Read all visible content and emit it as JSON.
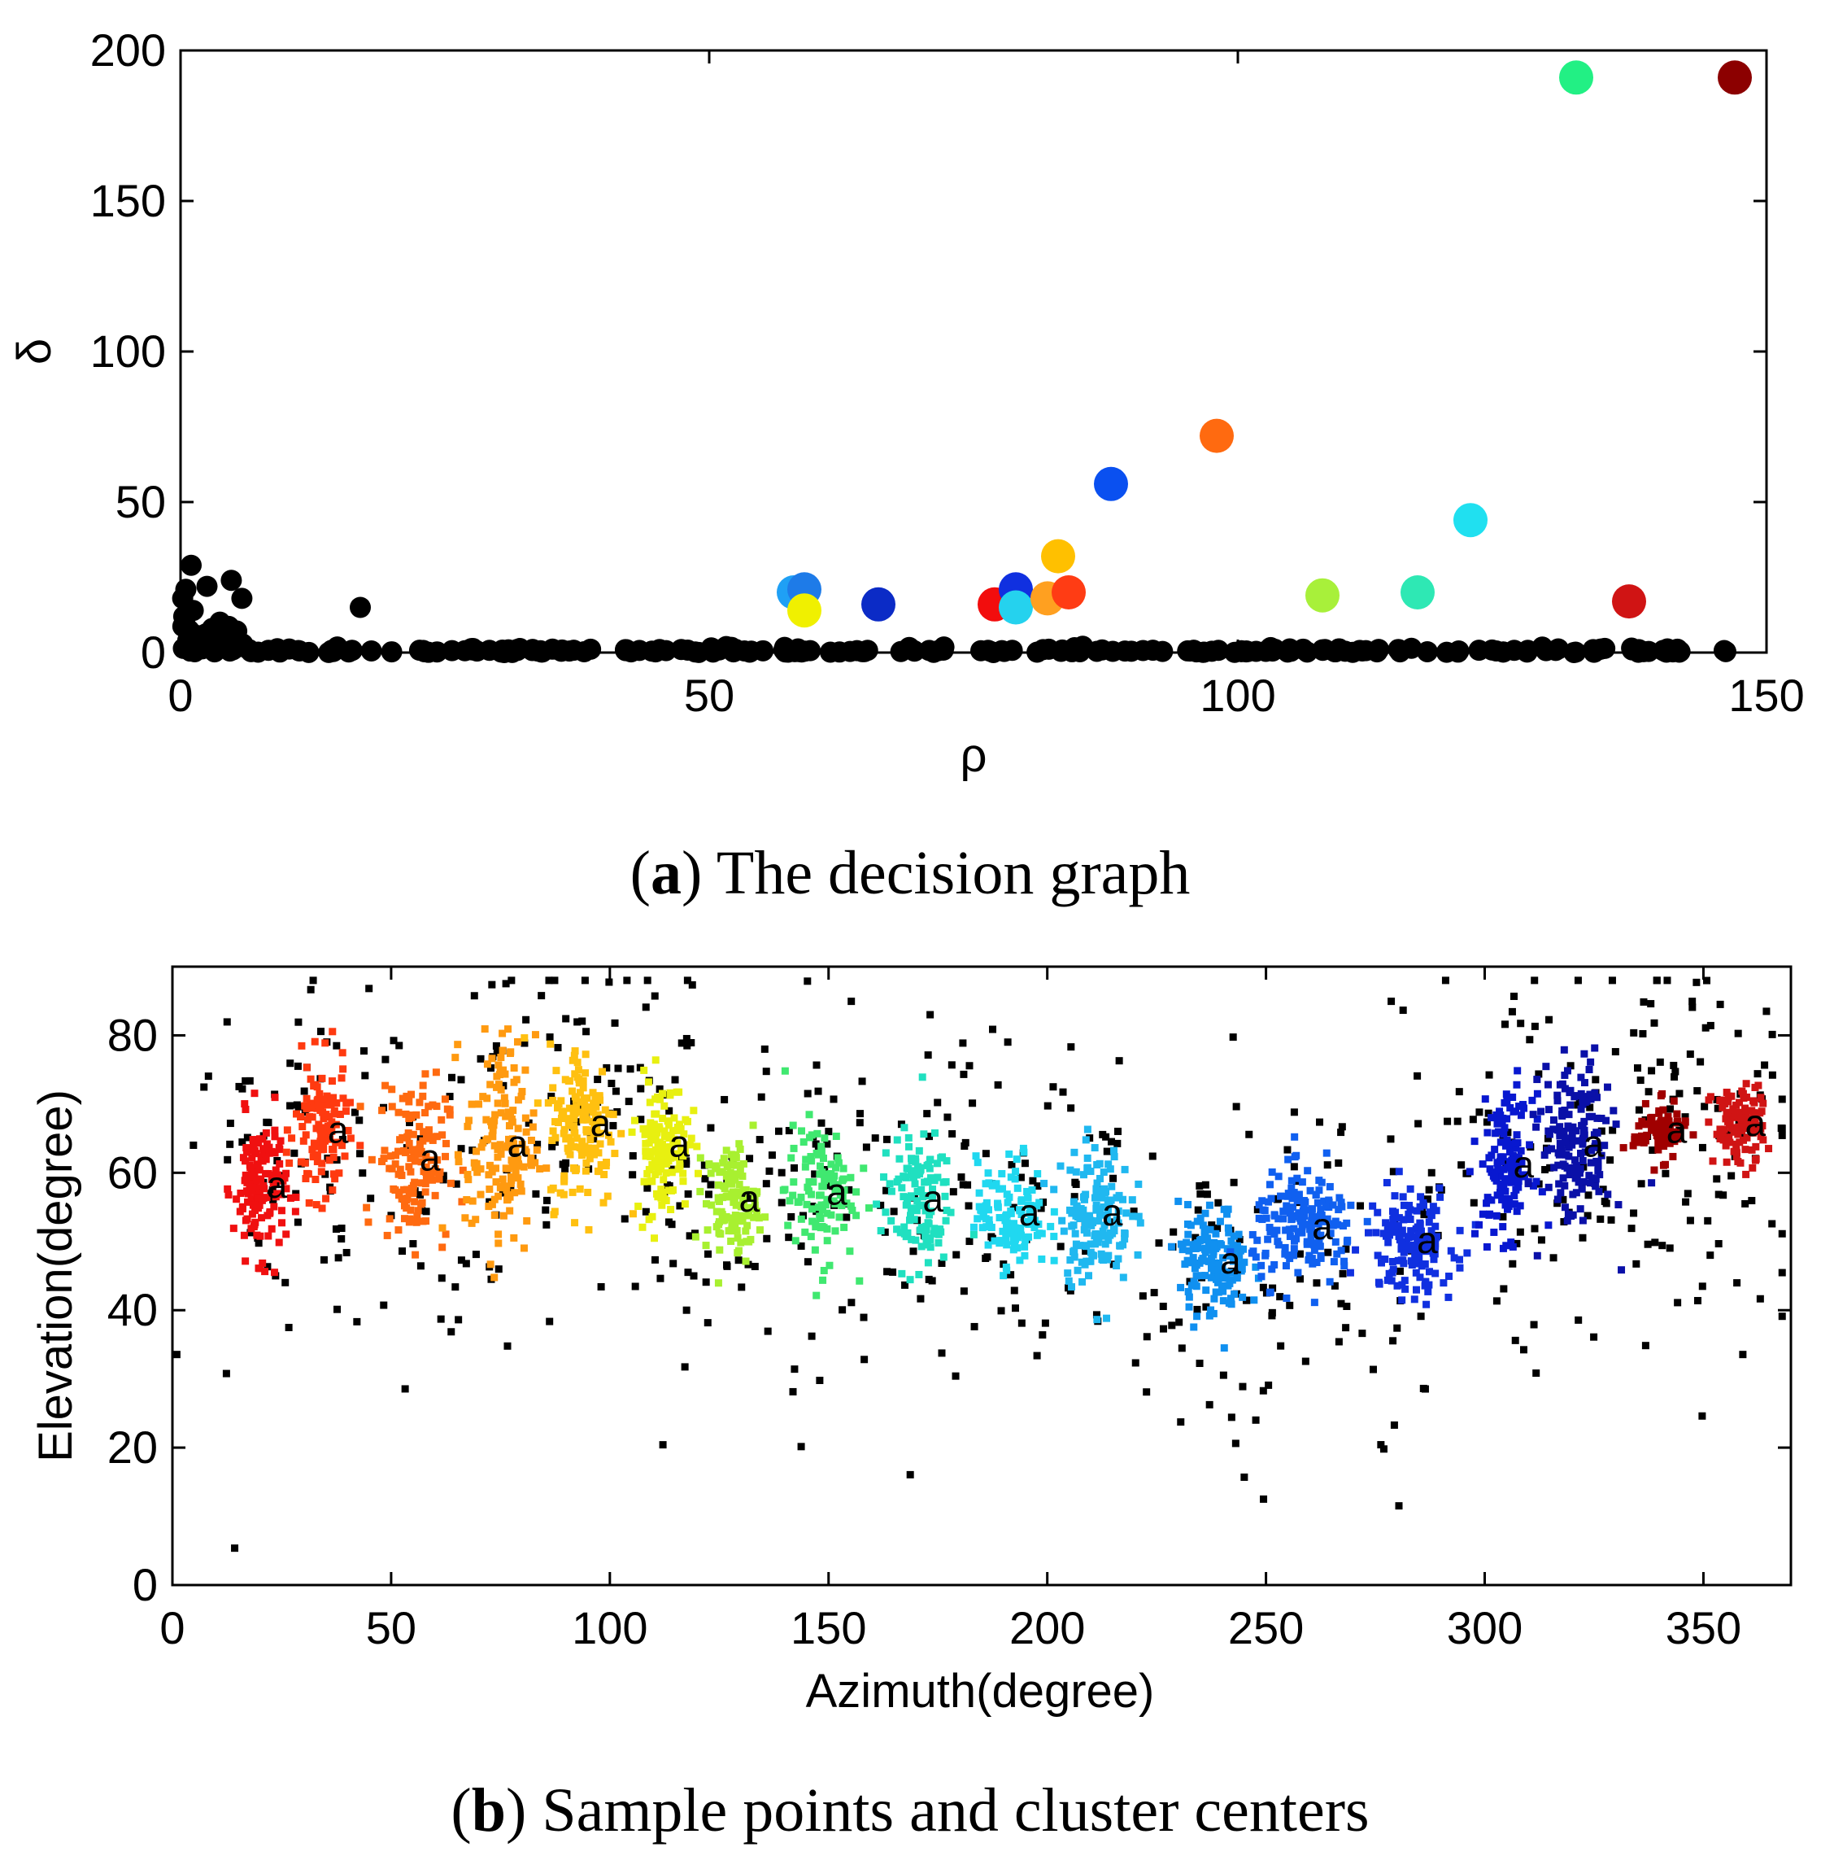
{
  "chart_data": [
    {
      "type": "scatter",
      "title": "",
      "xlabel": "ρ",
      "ylabel": "δ",
      "xlim": [
        0,
        150
      ],
      "ylim": [
        0,
        200
      ],
      "xticks": [
        0,
        50,
        100,
        150
      ],
      "yticks": [
        0,
        50,
        100,
        150,
        200
      ],
      "caption": {
        "label": "a",
        "text": "The decision graph"
      },
      "centers": [
        {
          "x": 58,
          "y": 20,
          "color": "#1fa0f5"
        },
        {
          "x": 59,
          "y": 21,
          "color": "#1e7be8"
        },
        {
          "x": 59,
          "y": 14,
          "color": "#f0f000"
        },
        {
          "x": 66,
          "y": 16,
          "color": "#0b2bc6"
        },
        {
          "x": 77,
          "y": 16,
          "color": "#f20d0d"
        },
        {
          "x": 79,
          "y": 21,
          "color": "#1030e0"
        },
        {
          "x": 79,
          "y": 15,
          "color": "#25d2ee"
        },
        {
          "x": 82,
          "y": 18,
          "color": "#ffa020"
        },
        {
          "x": 83,
          "y": 32,
          "color": "#ffc000"
        },
        {
          "x": 84,
          "y": 20,
          "color": "#ff3c14"
        },
        {
          "x": 88,
          "y": 56,
          "color": "#0a50f0"
        },
        {
          "x": 98,
          "y": 72,
          "color": "#ff6a10"
        },
        {
          "x": 108,
          "y": 19,
          "color": "#a8f03a"
        },
        {
          "x": 117,
          "y": 20,
          "color": "#2ee8b4"
        },
        {
          "x": 122,
          "y": 44,
          "color": "#20e0f0"
        },
        {
          "x": 137,
          "y": 17,
          "color": "#d01414"
        },
        {
          "x": 132,
          "y": 191,
          "color": "#22f084"
        },
        {
          "x": 147,
          "y": 191,
          "color": "#8c0000"
        }
      ],
      "noise_color": "#000000"
    },
    {
      "type": "scatter",
      "title": "",
      "xlabel": "Azimuth(degree)",
      "ylabel": "Elevation(degree)",
      "xlim": [
        0,
        370
      ],
      "ylim": [
        0,
        90
      ],
      "xticks": [
        0,
        50,
        100,
        150,
        200,
        250,
        300,
        350
      ],
      "yticks": [
        0,
        20,
        40,
        60,
        80
      ],
      "caption": {
        "label": "b",
        "text": "Sample points and cluster centers"
      },
      "center_marker": "a",
      "clusters": [
        {
          "cx": 20,
          "cy": 58,
          "sx": 3,
          "sy": 5,
          "color": "#f01010",
          "n": 140
        },
        {
          "cx": 34,
          "cy": 66,
          "sx": 3,
          "sy": 5,
          "color": "#ff3a10",
          "n": 120
        },
        {
          "cx": 55,
          "cy": 62,
          "sx": 4,
          "sy": 6,
          "color": "#ff6a10",
          "n": 140
        },
        {
          "cx": 75,
          "cy": 64,
          "sx": 4,
          "sy": 8,
          "color": "#ff9a10",
          "n": 150
        },
        {
          "cx": 94,
          "cy": 67,
          "sx": 4,
          "sy": 6,
          "color": "#ffc010",
          "n": 150
        },
        {
          "cx": 112,
          "cy": 64,
          "sx": 3,
          "sy": 5,
          "color": "#e8f010",
          "n": 130
        },
        {
          "cx": 128,
          "cy": 56,
          "sx": 3,
          "sy": 4,
          "color": "#a8f030",
          "n": 120
        },
        {
          "cx": 148,
          "cy": 57,
          "sx": 4,
          "sy": 5,
          "color": "#40e870",
          "n": 110
        },
        {
          "cx": 170,
          "cy": 56,
          "sx": 4,
          "sy": 5,
          "color": "#20e0c0",
          "n": 120
        },
        {
          "cx": 192,
          "cy": 54,
          "sx": 4,
          "sy": 4,
          "color": "#20d8f0",
          "n": 120
        },
        {
          "cx": 211,
          "cy": 54,
          "sx": 4,
          "sy": 5,
          "color": "#20b8f0",
          "n": 150
        },
        {
          "cx": 238,
          "cy": 47,
          "sx": 4,
          "sy": 4,
          "color": "#1090f0",
          "n": 140
        },
        {
          "cx": 259,
          "cy": 52,
          "sx": 6,
          "sy": 4,
          "color": "#1060f0",
          "n": 170
        },
        {
          "cx": 283,
          "cy": 50,
          "sx": 5,
          "sy": 4,
          "color": "#1030e0",
          "n": 150
        },
        {
          "cx": 305,
          "cy": 61,
          "sx": 3,
          "sy": 5,
          "color": "#0818d0",
          "n": 140
        },
        {
          "cx": 321,
          "cy": 64,
          "sx": 4,
          "sy": 6,
          "color": "#0a10a8",
          "n": 160
        },
        {
          "cx": 340,
          "cy": 66,
          "sx": 3,
          "sy": 2,
          "color": "#a00000",
          "n": 90
        },
        {
          "cx": 358,
          "cy": 67,
          "sx": 3,
          "sy": 3,
          "color": "#d01414",
          "n": 110
        }
      ],
      "noise_color": "#000000"
    }
  ]
}
